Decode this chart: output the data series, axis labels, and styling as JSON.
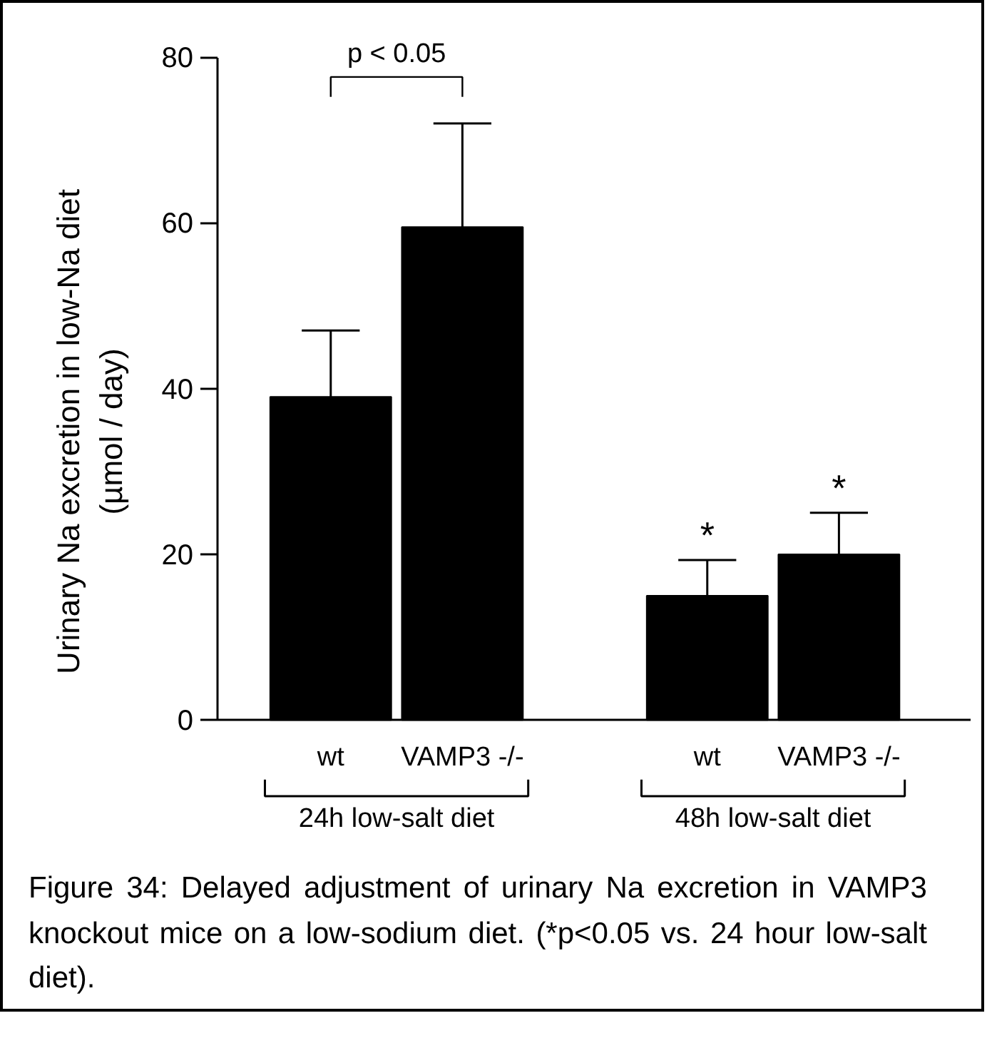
{
  "chart_data": {
    "type": "bar",
    "ylabel": "Urinary Na excretion in low-Na diet\n(µmol / day)",
    "categories": [
      "wt",
      "VAMP3 -/-",
      "wt",
      "VAMP3 -/-"
    ],
    "values": [
      39,
      59.5,
      15,
      20
    ],
    "errors": [
      [
        39,
        47
      ],
      [
        59.5,
        72
      ],
      [
        15,
        19.3
      ],
      [
        20,
        25
      ]
    ],
    "color": "#000000",
    "value_labels": [
      null,
      null,
      "*",
      "*"
    ],
    "ylim": [
      0,
      80
    ],
    "yticks": [
      0,
      20,
      40,
      60,
      80
    ],
    "grid": false,
    "annotations": [
      "p < 0.05",
      "24h low-salt diet",
      "48h low-salt diet",
      "Figure 34: Delayed adjustment of urinary Na excretion in VAMP3 knockout mice on a low-sodium diet. (*p<0.05 vs. 24 hour low-salt diet)."
    ]
  }
}
